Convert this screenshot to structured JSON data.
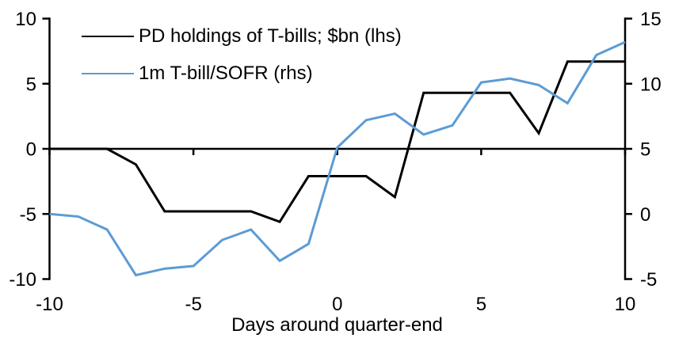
{
  "chart_data": {
    "type": "line",
    "title": "",
    "xlabel": "Days around quarter-end",
    "grid": false,
    "legend_position": "top-left",
    "x_range": [
      -10,
      10
    ],
    "x_ticks": [
      -10,
      -5,
      0,
      5,
      10
    ],
    "left_axis": {
      "range": [
        -10,
        10
      ],
      "ticks": [
        10,
        5,
        0,
        -5,
        -10
      ]
    },
    "right_axis": {
      "range": [
        -5,
        15
      ],
      "ticks": [
        15,
        10,
        5,
        0,
        -5
      ]
    },
    "x": [
      -10,
      -9,
      -8,
      -7,
      -6,
      -5,
      -4,
      -3,
      -2,
      -1,
      0,
      1,
      2,
      3,
      4,
      5,
      6,
      7,
      8,
      9,
      10
    ],
    "series": [
      {
        "name": "PD holdings of T-bills; $bn (lhs)",
        "axis": "left",
        "color": "#000000",
        "values": [
          0,
          0,
          0,
          -1.2,
          -4.8,
          -4.8,
          -4.8,
          -4.8,
          -5.6,
          -2.1,
          -2.1,
          -2.1,
          -3.7,
          4.3,
          4.3,
          4.3,
          4.3,
          1.2,
          6.7,
          6.7,
          6.7
        ]
      },
      {
        "name": "1m T-bill/SOFR (rhs)",
        "axis": "right",
        "color": "#5B9BD5",
        "values": [
          0.0,
          -0.2,
          -1.2,
          -4.7,
          -4.2,
          -4.0,
          -2.0,
          -1.2,
          -3.6,
          -2.3,
          5.1,
          7.2,
          7.7,
          6.1,
          6.8,
          10.1,
          10.4,
          9.9,
          8.5,
          12.2,
          13.2
        ]
      }
    ]
  }
}
